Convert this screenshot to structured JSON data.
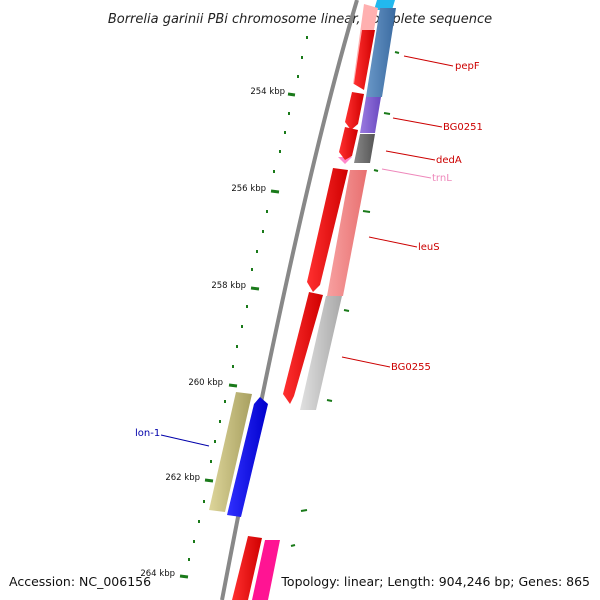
{
  "title": "Borrelia garinii PBi chromosome linear, complete sequence",
  "footer": {
    "accession": "Accession: NC_006156",
    "topology": "Topology: linear; Length: 904,246 bp; Genes: 865"
  },
  "kbp_labels": [
    "254 kbp",
    "256 kbp",
    "258 kbp",
    "260 kbp",
    "262 kbp",
    "264 kbp"
  ],
  "gene_labels": [
    {
      "text": "pepF",
      "color": "#cc0000"
    },
    {
      "text": "BG0251",
      "color": "#cc0000"
    },
    {
      "text": "dedA",
      "color": "#cc0000"
    },
    {
      "text": "trnL",
      "color": "#ee88bb"
    },
    {
      "text": "leuS",
      "color": "#cc0000"
    },
    {
      "text": "BG0255",
      "color": "#cc0000"
    },
    {
      "text": "lon-1",
      "color": "#0000aa"
    }
  ],
  "colors": {
    "cds": "#ff0000",
    "trna": "#ff88cc",
    "blue_gene": "#0000ff",
    "olive": "#c9c27a",
    "magenta": "#ff1493",
    "backbone": "#888888",
    "tick": "#1a7a1a"
  }
}
